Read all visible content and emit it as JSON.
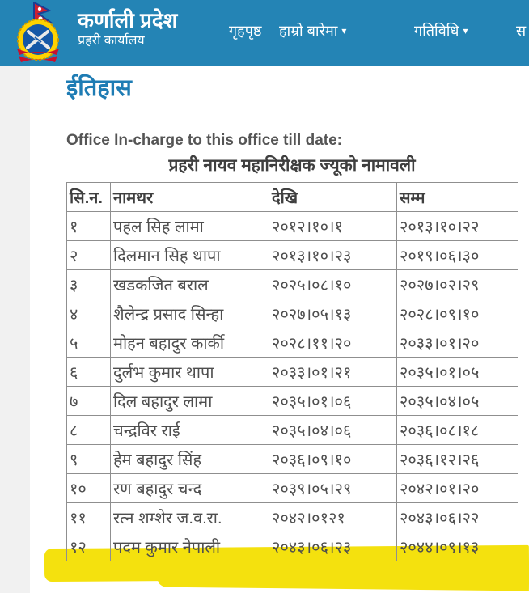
{
  "header": {
    "logo": "nepal-police-emblem",
    "title": "कर्णाली प्रदेश",
    "subtitle": "प्रहरी कार्यालय",
    "nav": [
      {
        "label": "गृहपृष्ठ",
        "has_dropdown": false
      },
      {
        "label": "हाम्रो बारेमा",
        "has_dropdown": true
      },
      {
        "label": "गतिविधि",
        "has_dropdown": true
      },
      {
        "label": "स",
        "has_dropdown": false
      }
    ],
    "bg_color": "#2484b5"
  },
  "icons": {
    "caret": "▾"
  },
  "page": {
    "heading": "ईतिहास",
    "intro_en": "Office In-charge to this office till date:",
    "table_title": "प्रहरी नायव महानिरीक्षक ज्यूको नामावली"
  },
  "table": {
    "columns": [
      "सि.न.",
      "नामथर",
      "देखि",
      "सम्म"
    ],
    "rows": [
      [
        "१",
        "पहल सिह लामा",
        "२०१२।१०।१",
        "२०१३।१०।२२"
      ],
      [
        "२",
        "दिलमान सिह थापा",
        "२०१३।१०।२३",
        "२०१९।०६।३०"
      ],
      [
        "३",
        "खडकजित बराल",
        "२०२५।०८।१०",
        "२०२७।०२।२९"
      ],
      [
        "४",
        "शैलेन्द्र प्रसाद सिन्हा",
        "२०२७।०५।१३",
        "२०२८।०९।१०"
      ],
      [
        "५",
        "मोहन बहादुर कार्की",
        "२०२८।११।२०",
        "२०३३।०१।२०"
      ],
      [
        "६",
        "दुर्लभ कुमार थापा",
        "२०३३।०१।२१",
        "२०३५।०१।०५"
      ],
      [
        "७",
        "दिल बहादुर लामा",
        "२०३५।०१।०६",
        "२०३५।०४।०५"
      ],
      [
        "८",
        "चन्द्रविर राई",
        "२०३५।०४।०६",
        "२०३६।०८।१८"
      ],
      [
        "९",
        "हेम बहादुर सिंह",
        "२०३६।०९।१०",
        "२०३६।१२।२६"
      ],
      [
        "१०",
        "रण बहादुर चन्द",
        "२०३९।०५।२९",
        "२०४२।०१।२०"
      ],
      [
        "११",
        "रत्न शम्शेर ज.व.रा.",
        "२०४२।०१२१",
        "२०४३।०६।२२"
      ],
      [
        "१२",
        "पदम कुमार नेपाली",
        "२०४३।०६।२३",
        "२०४४।०९।१३"
      ]
    ],
    "highlighted_row_serial": "१२",
    "highlight_color": "#f4e10e"
  },
  "colors": {
    "header_bg": "#2484b5",
    "heading_blue": "#1e7cb4",
    "table_border": "#8f8f8f",
    "text_gray": "#4e4e4e",
    "highlight_yellow": "#f4e10e"
  }
}
